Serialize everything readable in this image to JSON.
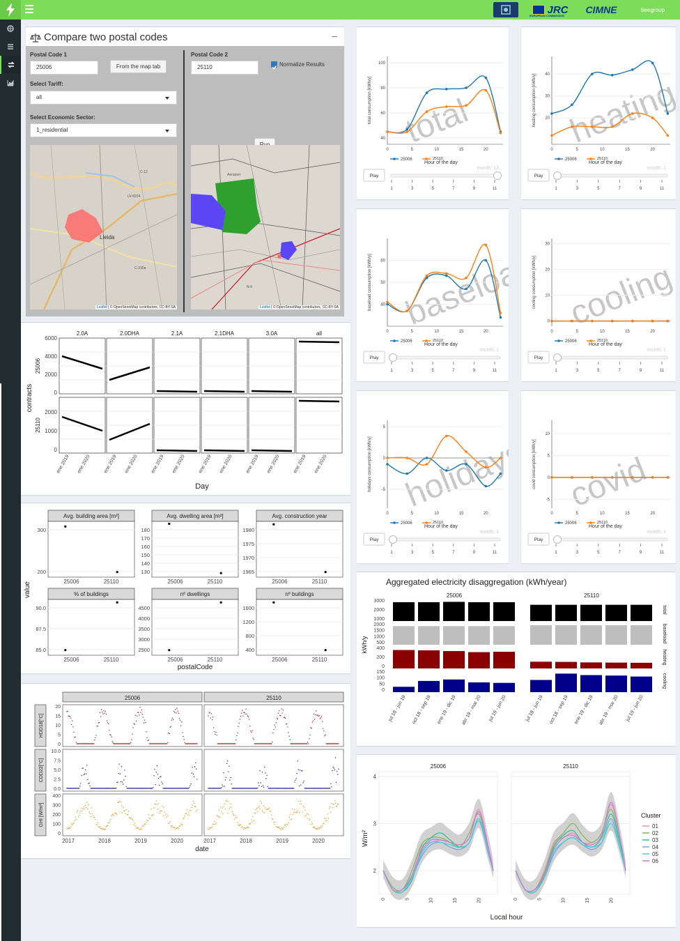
{
  "header": {
    "brand_logos": [
      "JRC",
      "CIMNE",
      "beegroup"
    ],
    "eu_caption": "EUROPEAN COMMISSION"
  },
  "colors": {
    "topbar": "#7ddc5a",
    "sidebar": "#222d32",
    "series_a": "#1f77b4",
    "series_b": "#ff7f0e",
    "cat_total": "#000000",
    "cat_baseload": "#bebebe",
    "cat_heating": "#8b0000",
    "cat_cooling": "#00008b"
  },
  "compare": {
    "title": "Compare two postal codes",
    "postal1_label": "Postal Code 1",
    "postal1_value": "25006",
    "from_map_button": "From the map tab",
    "tariff_label": "Select Tariff:",
    "tariff_value": "all",
    "sector_label": "Select Economic Sector:",
    "sector_value": "1_residential",
    "postal2_label": "Postal Code 2",
    "postal2_value": "25110",
    "normalize_label": "Normalize Results",
    "run_button": "Run",
    "map1": {
      "labels": [
        "C-12",
        "LV-9224",
        "Lleida",
        "C-230a"
      ],
      "attribution_leaflet": "Leaflet",
      "attribution_rest": " | © OpenStreetMap contributors, CC-BY-SA"
    },
    "map2": {
      "labels": [
        "Aeroport",
        "N-II"
      ],
      "attribution_leaflet": "Leaflet",
      "attribution_rest": " | © OpenStreetMap contributors, CC-BY-SA"
    }
  },
  "contracts": {
    "ylabel": "contracts",
    "xlabel": "Day",
    "tariffs": [
      "2.0A",
      "2.0DHA",
      "2.1A",
      "2.1DHA",
      "3.0A",
      "all"
    ],
    "rows": [
      "25006",
      "25110"
    ],
    "top_ticks": [
      "6000",
      "4000",
      "2000",
      "0"
    ],
    "bottom_ticks": [
      "2000",
      "1000",
      "0"
    ],
    "x_ticks": [
      "ene 2019",
      "ene 2020"
    ]
  },
  "buildings": {
    "ylabel": "value",
    "xlabel": "postalCode",
    "x_ticks": [
      "25006",
      "25110"
    ],
    "facets": [
      {
        "title": "Avg. building area [m²]",
        "ticks": [
          "300",
          "200"
        ]
      },
      {
        "title": "Avg. dwelling area [m²]",
        "ticks": [
          "180",
          "170",
          "160",
          "150",
          "140",
          "130"
        ]
      },
      {
        "title": "Avg. construction year",
        "ticks": [
          "1980",
          "1975",
          "1970",
          "1965"
        ]
      },
      {
        "title": "% of buildings",
        "ticks": [
          "90.0",
          "87.5",
          "85.0"
        ]
      },
      {
        "title": "nº dwellings",
        "ticks": [
          "4500",
          "4000",
          "3500",
          "3000",
          "2500"
        ]
      },
      {
        "title": "nº buildings",
        "ticks": [
          "1600",
          "1200",
          "800",
          "400"
        ]
      }
    ]
  },
  "weather": {
    "xlabel": "date",
    "columns": [
      "25006",
      "25110"
    ],
    "rows": [
      "HDD18[°C]",
      "CDD22[°C]",
      "GHI [W/m²]"
    ],
    "hdd_ticks": [
      "20",
      "15",
      "10",
      "5",
      "0"
    ],
    "cdd_ticks": [
      "10.0",
      "7.5",
      "5.0",
      "2.5",
      "0.0"
    ],
    "ghi_ticks": [
      "400",
      "300",
      "200",
      "100",
      "0"
    ],
    "years": [
      "2017",
      "2018",
      "2019",
      "2020"
    ]
  },
  "consumption": {
    "legend": [
      "25006",
      "25110"
    ],
    "xlabel": "Hour of the day",
    "x_ticks": [
      "0",
      "5",
      "10",
      "15",
      "20"
    ],
    "play_label": "Play",
    "slider_ticks": [
      "1",
      "3",
      "5",
      "7",
      "9",
      "11"
    ],
    "charts": [
      {
        "watermark": "total",
        "ylabel": "total consumption [kWh/y]",
        "yticks": [
          "100",
          "80",
          "60",
          "40"
        ],
        "month": "month: 12"
      },
      {
        "watermark": "heating",
        "ylabel": "heating consumption [kWh/y]",
        "yticks": [
          "40",
          "30",
          "20"
        ],
        "month": "month: 1"
      },
      {
        "watermark": "baseload",
        "ylabel": "baseload consumption [kWh/y]",
        "yticks": [
          "60",
          "50",
          "40"
        ],
        "month": "month: 1"
      },
      {
        "watermark": "cooling",
        "ylabel": "cooling consumption [kWh/y]",
        "yticks": [
          "30",
          "20",
          "10",
          "0"
        ],
        "month": "month: 1"
      },
      {
        "watermark": "holidays",
        "ylabel": "holidays consumption [kWh/y]",
        "yticks": [
          "5",
          "0",
          "-5"
        ],
        "month": "month: 1"
      },
      {
        "watermark": "covid",
        "ylabel": "covid consumption [kWh/y]",
        "yticks": [
          "10",
          "5",
          "0",
          "-5"
        ],
        "month": "month: 1"
      }
    ]
  },
  "disaggregation": {
    "title": "Aggregated electricity disaggregation (kWh/year)",
    "ylabel": "kWh/y",
    "columns": [
      "25006",
      "25110"
    ],
    "categories": [
      "total",
      "baseload",
      "heating",
      "cooling"
    ],
    "periods": [
      "jul 18 - jun 19",
      "oct 18 - sep 19",
      "ene 19 - dic 19",
      "abr 19 - mar 20",
      "jul 19 - jun 20"
    ],
    "tick_groups": [
      [
        "3000",
        "2000",
        "1000"
      ],
      [
        "2000",
        "1500",
        "1000",
        "500"
      ],
      [
        "400",
        "200",
        "0"
      ],
      [
        "150",
        "100",
        "50",
        "0"
      ]
    ]
  },
  "chart_data": [
    {
      "type": "line",
      "title": "",
      "watermark": "total",
      "xlabel": "Hour of the day",
      "ylabel": "total consumption [kWh/y]",
      "ylim": [
        35,
        105
      ],
      "x": [
        0,
        4,
        8,
        12,
        16,
        20,
        23
      ],
      "series": [
        {
          "name": "25006",
          "values": [
            45,
            47,
            76,
            79,
            80,
            88,
            45
          ]
        },
        {
          "name": "25110",
          "values": [
            45,
            45,
            61,
            65,
            66,
            78,
            44
          ]
        }
      ]
    },
    {
      "type": "line",
      "title": "",
      "watermark": "heating",
      "xlabel": "Hour of the day",
      "ylabel": "heating consumption [kWh/y]",
      "ylim": [
        8,
        48
      ],
      "x": [
        0,
        4,
        8,
        12,
        16,
        20,
        23
      ],
      "series": [
        {
          "name": "25006",
          "values": [
            22,
            26,
            40,
            39.5,
            42,
            45,
            22
          ]
        },
        {
          "name": "25110",
          "values": [
            12,
            16,
            16,
            16,
            22,
            20,
            12
          ]
        }
      ]
    },
    {
      "type": "line",
      "title": "",
      "watermark": "baseload",
      "xlabel": "Hour of the day",
      "ylabel": "baseload consumption [kWh/y]",
      "ylim": [
        30,
        70
      ],
      "x": [
        0,
        4,
        8,
        12,
        16,
        20,
        23
      ],
      "series": [
        {
          "name": "25006",
          "values": [
            40,
            37,
            52,
            53,
            47,
            60,
            34
          ]
        },
        {
          "name": "25110",
          "values": [
            41,
            37,
            53,
            54,
            52,
            67,
            36
          ]
        }
      ]
    },
    {
      "type": "line",
      "title": "",
      "watermark": "cooling",
      "xlabel": "Hour of the day",
      "ylabel": "cooling consumption [kWh/y]",
      "ylim": [
        -2,
        32
      ],
      "x": [
        0,
        4,
        8,
        12,
        16,
        20,
        23
      ],
      "series": [
        {
          "name": "25006",
          "values": [
            0,
            0,
            0,
            0,
            0,
            0,
            0
          ]
        },
        {
          "name": "25110",
          "values": [
            0,
            0,
            0,
            0,
            0,
            0,
            0
          ]
        }
      ]
    },
    {
      "type": "line",
      "title": "",
      "watermark": "holidays",
      "xlabel": "Hour of the day",
      "ylabel": "holidays consumption [kWh/y]",
      "ylim": [
        -8,
        6
      ],
      "x": [
        0,
        4,
        8,
        12,
        16,
        20,
        23
      ],
      "series": [
        {
          "name": "25006",
          "values": [
            -1,
            -2.5,
            0,
            -2,
            -1,
            -4.5,
            -2.5
          ]
        },
        {
          "name": "25110",
          "values": [
            0,
            0,
            -1,
            3.5,
            1,
            -1.5,
            0
          ]
        }
      ]
    },
    {
      "type": "line",
      "title": "",
      "watermark": "covid",
      "xlabel": "Hour of the day",
      "ylabel": "covid consumption [kWh/y]",
      "ylim": [
        -7,
        13
      ],
      "x": [
        0,
        4,
        8,
        12,
        16,
        20,
        23
      ],
      "series": [
        {
          "name": "25006",
          "values": [
            0,
            0,
            0,
            0,
            0,
            0,
            0
          ]
        },
        {
          "name": "25110",
          "values": [
            0,
            0,
            0,
            0,
            0,
            0,
            0
          ]
        }
      ]
    },
    {
      "type": "bar",
      "title": "Aggregated electricity disaggregation (kWh/year)",
      "ylabel": "kWh/y",
      "categories": [
        "jul 18 - jun 19",
        "oct 18 - sep 19",
        "ene 19 - dic 19",
        "abr 19 - mar 20",
        "jul 19 - jun 20"
      ],
      "facets": [
        "25006",
        "25110"
      ],
      "series": [
        {
          "name": "total",
          "values_25006": [
            2900,
            2900,
            2950,
            2900,
            2900
          ],
          "values_25110": [
            2500,
            2500,
            2500,
            2500,
            2500
          ],
          "ylim": [
            0,
            3000
          ]
        },
        {
          "name": "baseload",
          "values_25006": [
            2200,
            2200,
            2200,
            2200,
            2200
          ],
          "values_25110": [
            2300,
            2300,
            2300,
            2300,
            2300
          ],
          "ylim": [
            0,
            2300
          ]
        },
        {
          "name": "heating",
          "values_25006": [
            520,
            510,
            490,
            460,
            470
          ],
          "values_25110": [
            190,
            185,
            170,
            165,
            160
          ],
          "ylim": [
            0,
            550
          ]
        },
        {
          "name": "cooling",
          "values_25006": [
            55,
            115,
            130,
            100,
            95
          ],
          "values_25110": [
            125,
            190,
            175,
            170,
            160
          ],
          "ylim": [
            0,
            200
          ]
        }
      ]
    },
    {
      "type": "line",
      "title": "",
      "xlabel": "Local hour",
      "ylabel": "W/m²",
      "legend_title": "Cluster",
      "facets": [
        "25006",
        "25110"
      ],
      "ylim": [
        1.5,
        4.1
      ],
      "x": [
        0,
        2,
        4,
        6,
        8,
        10,
        12,
        14,
        16,
        18,
        20,
        22,
        23
      ],
      "series": [
        {
          "name": "01",
          "values_25006": [
            2.0,
            1.6,
            1.55,
            1.9,
            2.5,
            2.6,
            2.65,
            2.6,
            2.55,
            2.7,
            3.3,
            2.5,
            2.0
          ],
          "values_25110": [
            2.0,
            1.6,
            1.6,
            2.0,
            2.6,
            2.7,
            2.8,
            2.6,
            2.6,
            2.8,
            3.4,
            2.6,
            2.0
          ]
        },
        {
          "name": "02",
          "values_25006": [
            2.0,
            1.65,
            1.6,
            2.0,
            2.55,
            2.7,
            2.7,
            2.6,
            2.5,
            2.8,
            3.2,
            2.4,
            2.0
          ],
          "values_25110": [
            2.0,
            1.6,
            1.6,
            1.95,
            2.55,
            2.8,
            3.0,
            2.75,
            2.6,
            2.8,
            3.3,
            2.5,
            2.0
          ]
        },
        {
          "name": "03",
          "values_25006": [
            2.0,
            1.6,
            1.55,
            1.8,
            2.45,
            2.7,
            2.8,
            2.65,
            2.5,
            2.6,
            3.1,
            2.4,
            2.0
          ],
          "values_25110": [
            2.0,
            1.6,
            1.55,
            1.9,
            2.5,
            2.75,
            2.85,
            2.6,
            2.5,
            2.7,
            3.2,
            2.5,
            2.0
          ]
        },
        {
          "name": "04",
          "values_25006": [
            2.0,
            1.6,
            1.6,
            1.85,
            2.3,
            2.55,
            2.6,
            2.5,
            2.45,
            2.6,
            3.05,
            2.35,
            2.0
          ],
          "values_25110": [
            2.0,
            1.6,
            1.55,
            1.85,
            2.35,
            2.6,
            2.7,
            2.55,
            2.45,
            2.6,
            3.1,
            2.4,
            2.0
          ]
        },
        {
          "name": "05",
          "values_25006": [
            2.0,
            1.6,
            1.55,
            1.85,
            2.35,
            2.6,
            2.6,
            2.55,
            2.5,
            2.6,
            3.1,
            2.4,
            2.0
          ],
          "values_25110": [
            2.0,
            1.6,
            1.55,
            1.85,
            2.4,
            2.6,
            2.7,
            2.55,
            2.5,
            2.6,
            3.0,
            2.4,
            2.0
          ]
        },
        {
          "name": "06",
          "values_25006": [
            2.0,
            1.6,
            1.6,
            1.9,
            2.4,
            2.65,
            2.65,
            2.6,
            2.55,
            2.7,
            3.25,
            2.45,
            2.0
          ],
          "values_25110": [
            2.0,
            1.6,
            1.6,
            1.9,
            2.45,
            2.7,
            2.75,
            2.6,
            2.55,
            2.75,
            3.45,
            2.6,
            2.0
          ]
        }
      ]
    }
  ]
}
